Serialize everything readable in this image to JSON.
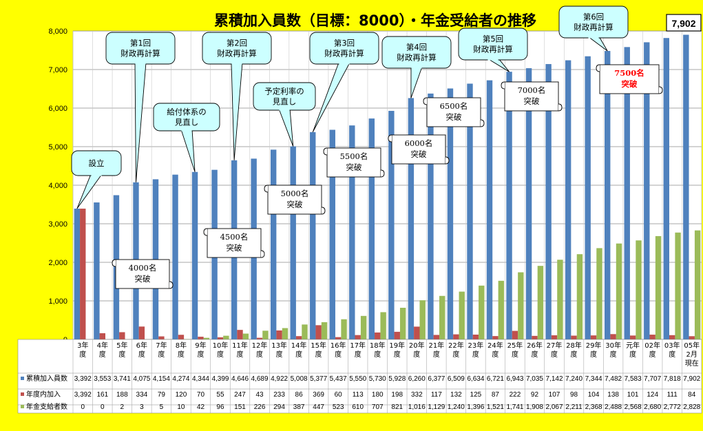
{
  "chart_data": {
    "type": "bar",
    "title": "累積加入員数（目標：8000）・年金受給者の推移",
    "ylim": [
      0,
      8000
    ],
    "yticks": [
      "0",
      "1,000",
      "2,000",
      "3,000",
      "4,000",
      "5,000",
      "6,000",
      "7,000",
      "8,000"
    ],
    "grid": true,
    "categories": [
      [
        "3年",
        "度"
      ],
      [
        "4年",
        "度"
      ],
      [
        "5年",
        "度"
      ],
      [
        "6年",
        "度"
      ],
      [
        "7年",
        "度"
      ],
      [
        "8年",
        "度"
      ],
      [
        "9年",
        "度"
      ],
      [
        "10年",
        "度"
      ],
      [
        "11年",
        "度"
      ],
      [
        "12年",
        "度"
      ],
      [
        "13年",
        "度"
      ],
      [
        "14年",
        "度"
      ],
      [
        "15年",
        "度"
      ],
      [
        "16年",
        "度"
      ],
      [
        "17年",
        "度"
      ],
      [
        "18年",
        "度"
      ],
      [
        "19年",
        "度"
      ],
      [
        "20年",
        "度"
      ],
      [
        "21年",
        "度"
      ],
      [
        "22年",
        "度"
      ],
      [
        "23年",
        "度"
      ],
      [
        "24年",
        "度"
      ],
      [
        "25年",
        "度"
      ],
      [
        "26年",
        "度"
      ],
      [
        "27年",
        "度"
      ],
      [
        "28年",
        "度"
      ],
      [
        "29年",
        "度"
      ],
      [
        "30年",
        "度"
      ],
      [
        "元年",
        "度"
      ],
      [
        "02年",
        "度"
      ],
      [
        "03年",
        "度"
      ],
      [
        "05年",
        "2月",
        "現在"
      ]
    ],
    "series": [
      {
        "name": "累積加入員数",
        "color": "#4f81bd",
        "values": [
          3392,
          3553,
          3741,
          4075,
          4154,
          4274,
          4344,
          4399,
          4646,
          4689,
          4922,
          5008,
          5377,
          5437,
          5550,
          5730,
          5928,
          6260,
          6377,
          6509,
          6634,
          6721,
          6943,
          7035,
          7142,
          7240,
          7344,
          7482,
          7583,
          7707,
          7818,
          7902
        ],
        "labels": [
          "3,392",
          "3,553",
          "3,741",
          "4,075",
          "4,154",
          "4,274",
          "4,344",
          "4,399",
          "4,646",
          "4,689",
          "4,922",
          "5,008",
          "5,377",
          "5,437",
          "5,550",
          "5,730",
          "5,928",
          "6,260",
          "6,377",
          "6,509",
          "6,634",
          "6,721",
          "6,943",
          "7,035",
          "7,142",
          "7,240",
          "7,344",
          "7,482",
          "7,583",
          "7,707",
          "7,818",
          "7,902"
        ]
      },
      {
        "name": "年度内加入",
        "color": "#c0504d",
        "values": [
          3392,
          161,
          188,
          334,
          79,
          120,
          70,
          55,
          247,
          43,
          233,
          86,
          369,
          60,
          113,
          180,
          198,
          332,
          117,
          132,
          125,
          87,
          222,
          92,
          107,
          98,
          104,
          138,
          101,
          124,
          111,
          84
        ],
        "labels": [
          "3,392",
          "161",
          "188",
          "334",
          "79",
          "120",
          "70",
          "55",
          "247",
          "43",
          "233",
          "86",
          "369",
          "60",
          "113",
          "180",
          "198",
          "332",
          "117",
          "132",
          "125",
          "87",
          "222",
          "92",
          "107",
          "98",
          "104",
          "138",
          "101",
          "124",
          "111",
          "84"
        ]
      },
      {
        "name": "年金支給者数",
        "color": "#9bbb59",
        "values": [
          0,
          0,
          2,
          3,
          5,
          10,
          42,
          96,
          151,
          226,
          294,
          387,
          447,
          523,
          610,
          707,
          821,
          1016,
          1129,
          1240,
          1396,
          1521,
          1741,
          1908,
          2067,
          2211,
          2368,
          2488,
          2568,
          2680,
          2772,
          2828
        ],
        "labels": [
          "0",
          "0",
          "2",
          "3",
          "5",
          "10",
          "42",
          "96",
          "151",
          "226",
          "294",
          "387",
          "447",
          "523",
          "610",
          "707",
          "821",
          "1,016",
          "1,129",
          "1,240",
          "1,396",
          "1,521",
          "1,741",
          "1,908",
          "2,067",
          "2,211",
          "2,368",
          "2,488",
          "2,568",
          "2,680",
          "2,772",
          "2,828"
        ]
      }
    ],
    "highlight_label": "7,902",
    "annotations": [
      {
        "style": "callout",
        "target": 0,
        "lines": [
          "設立"
        ]
      },
      {
        "style": "callout",
        "target": 3,
        "lines": [
          "第1回",
          "財政再計算"
        ]
      },
      {
        "style": "callout",
        "target": 6,
        "lines": [
          "給付体系の",
          "見直し"
        ]
      },
      {
        "style": "callout",
        "target": 8,
        "lines": [
          "第2回",
          "財政再計算"
        ]
      },
      {
        "style": "callout",
        "target": 11,
        "lines": [
          "予定利率の",
          "見直し"
        ]
      },
      {
        "style": "callout",
        "target": 12,
        "lines": [
          "第3回",
          "財政再計算"
        ]
      },
      {
        "style": "callout",
        "target": 17,
        "lines": [
          "第4回",
          "財政再計算"
        ]
      },
      {
        "style": "callout",
        "target": 22,
        "lines": [
          "第5回",
          "財政再計算"
        ]
      },
      {
        "style": "callout",
        "target": 27,
        "lines": [
          "第6回",
          "財政再計算"
        ]
      },
      {
        "style": "scroll",
        "lines": [
          "4000名",
          "突破"
        ],
        "color": "#000000"
      },
      {
        "style": "scroll",
        "lines": [
          "4500名",
          "突破"
        ],
        "color": "#000000"
      },
      {
        "style": "scroll",
        "lines": [
          "5000名",
          "突破"
        ],
        "color": "#000000"
      },
      {
        "style": "scroll",
        "lines": [
          "5500名",
          "突破"
        ],
        "color": "#000000"
      },
      {
        "style": "scroll",
        "lines": [
          "6000名",
          "突破"
        ],
        "color": "#000000"
      },
      {
        "style": "scroll",
        "lines": [
          "6500名",
          "突破"
        ],
        "color": "#000000"
      },
      {
        "style": "scroll",
        "lines": [
          "7000名",
          "突破"
        ],
        "color": "#000000"
      },
      {
        "style": "scroll",
        "lines": [
          "7500名",
          "突破"
        ],
        "color": "#ff0000"
      }
    ]
  }
}
